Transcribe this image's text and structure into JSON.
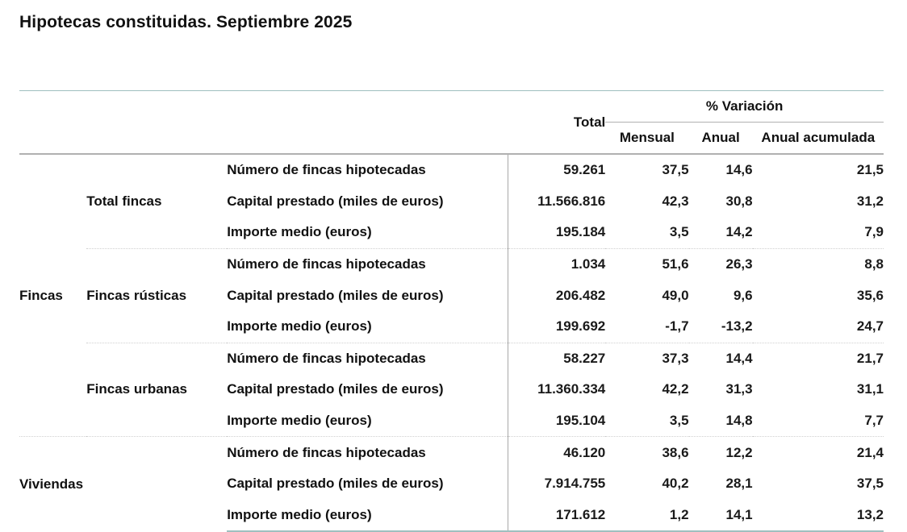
{
  "title": "Hipotecas constituidas. Septiembre 2025",
  "table": {
    "headers": {
      "total": "Total",
      "variation_group": "% Variación",
      "mensual": "Mensual",
      "anual": "Anual",
      "anual_acumulada": "Anual acumulada"
    },
    "groups": [
      {
        "label": "Fincas",
        "subgroups": [
          {
            "label": "Total fincas",
            "rows": [
              {
                "metric": "Número de fincas hipotecadas",
                "total": "59.261",
                "mensual": "37,5",
                "anual": "14,6",
                "anual_acumulada": "21,5"
              },
              {
                "metric": "Capital prestado (miles de euros)",
                "total": "11.566.816",
                "mensual": "42,3",
                "anual": "30,8",
                "anual_acumulada": "31,2"
              },
              {
                "metric": "Importe medio (euros)",
                "total": "195.184",
                "mensual": "3,5",
                "anual": "14,2",
                "anual_acumulada": "7,9"
              }
            ]
          },
          {
            "label": "Fincas rústicas",
            "rows": [
              {
                "metric": "Número de fincas hipotecadas",
                "total": "1.034",
                "mensual": "51,6",
                "anual": "26,3",
                "anual_acumulada": "8,8"
              },
              {
                "metric": "Capital prestado (miles de euros)",
                "total": "206.482",
                "mensual": "49,0",
                "anual": "9,6",
                "anual_acumulada": "35,6"
              },
              {
                "metric": "Importe medio (euros)",
                "total": "199.692",
                "mensual": "-1,7",
                "anual": "-13,2",
                "anual_acumulada": "24,7"
              }
            ]
          },
          {
            "label": "Fincas urbanas",
            "rows": [
              {
                "metric": "Número de fincas hipotecadas",
                "total": "58.227",
                "mensual": "37,3",
                "anual": "14,4",
                "anual_acumulada": "21,7"
              },
              {
                "metric": "Capital prestado (miles de euros)",
                "total": "11.360.334",
                "mensual": "42,2",
                "anual": "31,3",
                "anual_acumulada": "31,1"
              },
              {
                "metric": "Importe medio (euros)",
                "total": "195.104",
                "mensual": "3,5",
                "anual": "14,8",
                "anual_acumulada": "7,7"
              }
            ]
          }
        ]
      },
      {
        "label": "Viviendas",
        "subgroups": [
          {
            "label": "",
            "rows": [
              {
                "metric": "Número de fincas hipotecadas",
                "total": "46.120",
                "mensual": "38,6",
                "anual": "12,2",
                "anual_acumulada": "21,4"
              },
              {
                "metric": "Capital prestado (miles de euros)",
                "total": "7.914.755",
                "mensual": "40,2",
                "anual": "28,1",
                "anual_acumulada": "37,5"
              },
              {
                "metric": "Importe medio (euros)",
                "total": "171.612",
                "mensual": "1,2",
                "anual": "14,1",
                "anual_acumulada": "13,2"
              }
            ]
          }
        ]
      }
    ]
  },
  "colors": {
    "outer_border": "#9fbfbf",
    "header_rule": "#b0b0b0",
    "vertical_divider": "#a8a8a8",
    "group_separator": "#d0d0d0",
    "text": "#111111"
  }
}
